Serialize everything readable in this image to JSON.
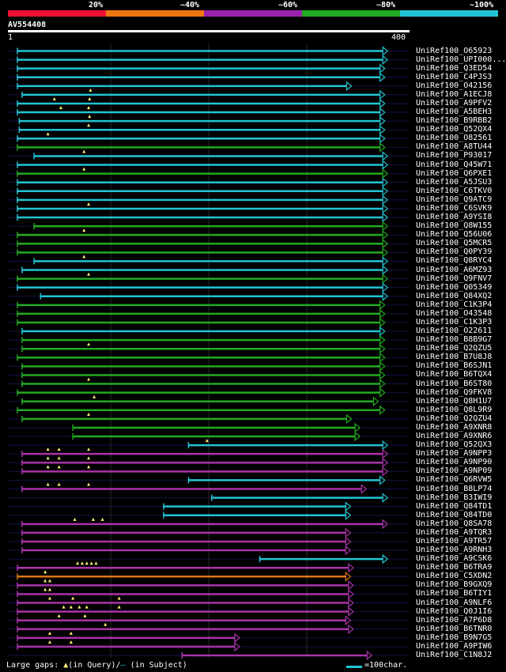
{
  "legend": {
    "colors": [
      "#ee1133",
      "#ee7711",
      "#9922aa",
      "#22aa22",
      "#22c4d4"
    ],
    "labels": [
      "20%",
      "~40%",
      "~60%",
      "~80%",
      "~100%"
    ]
  },
  "query": {
    "accession": "AV554408",
    "start": "1",
    "end": "400"
  },
  "footer": {
    "gaps_prefix": "Large gaps:",
    "gaps_query": "(in Query)/",
    "gaps_subject": " (in Subject)",
    "scale": "=100char."
  },
  "hits": [
    {
      "id": "UniRef100_O65923",
      "color": "cyan",
      "s": 0,
      "e": 395,
      "ins": []
    },
    {
      "id": "UniRef100_UPI000...",
      "color": "cyan",
      "s": 0,
      "e": 395,
      "ins": []
    },
    {
      "id": "UniRef100_Q3ED54",
      "color": "cyan",
      "s": 0,
      "e": 392,
      "ins": []
    },
    {
      "id": "UniRef100_C4PJS3",
      "color": "cyan",
      "s": 0,
      "e": 392,
      "ins": []
    },
    {
      "id": "UniRef100_O42156",
      "color": "cyan",
      "s": 0,
      "e": 356,
      "ins": []
    },
    {
      "id": "UniRef100_A1ECJ8",
      "color": "cyan",
      "s": 5,
      "e": 392,
      "ins": [
        79
      ]
    },
    {
      "id": "UniRef100_A9PFV2",
      "color": "cyan",
      "s": 0,
      "e": 392,
      "ins": [
        40,
        78
      ]
    },
    {
      "id": "UniRef100_A5BEH3",
      "color": "cyan",
      "s": 0,
      "e": 392,
      "ins": [
        47,
        77
      ]
    },
    {
      "id": "UniRef100_B9RBB2",
      "color": "cyan",
      "s": 2,
      "e": 392,
      "ins": [
        78
      ]
    },
    {
      "id": "UniRef100_Q52QX4",
      "color": "cyan",
      "s": 2,
      "e": 392,
      "ins": [
        77
      ]
    },
    {
      "id": "UniRef100_O82561",
      "color": "cyan",
      "s": 0,
      "e": 392,
      "ins": [
        33
      ]
    },
    {
      "id": "UniRef100_A8TU44",
      "color": "green",
      "s": 0,
      "e": 392,
      "ins": []
    },
    {
      "id": "UniRef100_P93017",
      "color": "cyan",
      "s": 18,
      "e": 395,
      "ins": [
        72
      ]
    },
    {
      "id": "UniRef100_Q45W71",
      "color": "cyan",
      "s": 0,
      "e": 395,
      "ins": []
    },
    {
      "id": "UniRef100_Q6PXE1",
      "color": "green",
      "s": 0,
      "e": 395,
      "ins": [
        72
      ]
    },
    {
      "id": "UniRef100_A5JSU3",
      "color": "cyan",
      "s": 0,
      "e": 395,
      "ins": []
    },
    {
      "id": "UniRef100_C6TKV0",
      "color": "cyan",
      "s": 0,
      "e": 395,
      "ins": []
    },
    {
      "id": "UniRef100_Q9ATC9",
      "color": "cyan",
      "s": 0,
      "e": 395,
      "ins": []
    },
    {
      "id": "UniRef100_C6SVK9",
      "color": "cyan",
      "s": 0,
      "e": 395,
      "ins": [
        77
      ]
    },
    {
      "id": "UniRef100_A9YSI8",
      "color": "cyan",
      "s": 0,
      "e": 395,
      "ins": []
    },
    {
      "id": "UniRef100_Q8W155",
      "color": "green",
      "s": 18,
      "e": 395,
      "ins": []
    },
    {
      "id": "UniRef100_Q56U06",
      "color": "green",
      "s": 0,
      "e": 395,
      "ins": [
        72
      ]
    },
    {
      "id": "UniRef100_Q5MCR5",
      "color": "green",
      "s": 0,
      "e": 395,
      "ins": []
    },
    {
      "id": "UniRef100_Q0PY39",
      "color": "green",
      "s": 0,
      "e": 395,
      "ins": []
    },
    {
      "id": "UniRef100_Q8RYC4",
      "color": "cyan",
      "s": 18,
      "e": 395,
      "ins": [
        72
      ]
    },
    {
      "id": "UniRef100_A6MZ93",
      "color": "cyan",
      "s": 5,
      "e": 395,
      "ins": []
    },
    {
      "id": "UniRef100_Q9FNV7",
      "color": "green",
      "s": 0,
      "e": 395,
      "ins": [
        77
      ]
    },
    {
      "id": "UniRef100_Q05349",
      "color": "cyan",
      "s": 0,
      "e": 395,
      "ins": []
    },
    {
      "id": "UniRef100_Q84XQ2",
      "color": "cyan",
      "s": 25,
      "e": 395,
      "ins": []
    },
    {
      "id": "UniRef100_C1K3P4",
      "color": "green",
      "s": 0,
      "e": 392,
      "ins": []
    },
    {
      "id": "UniRef100_O43548",
      "color": "green",
      "s": 0,
      "e": 392,
      "ins": []
    },
    {
      "id": "UniRef100_C1K3P3",
      "color": "green",
      "s": 0,
      "e": 392,
      "ins": []
    },
    {
      "id": "UniRef100_O22611",
      "color": "cyan",
      "s": 5,
      "e": 392,
      "ins": []
    },
    {
      "id": "UniRef100_B8B9G7",
      "color": "green",
      "s": 5,
      "e": 392,
      "ins": []
    },
    {
      "id": "UniRef100_Q2QZU5",
      "color": "green",
      "s": 5,
      "e": 392,
      "ins": [
        77
      ]
    },
    {
      "id": "UniRef100_B7U8J8",
      "color": "green",
      "s": 0,
      "e": 392,
      "ins": []
    },
    {
      "id": "UniRef100_B6SJN1",
      "color": "green",
      "s": 5,
      "e": 392,
      "ins": []
    },
    {
      "id": "UniRef100_B6TQX4",
      "color": "green",
      "s": 5,
      "e": 392,
      "ins": []
    },
    {
      "id": "UniRef100_B6ST80",
      "color": "green",
      "s": 5,
      "e": 392,
      "ins": [
        77
      ]
    },
    {
      "id": "UniRef100_Q9FKV8",
      "color": "green",
      "s": 0,
      "e": 392,
      "ins": []
    },
    {
      "id": "UniRef100_Q8H1U7",
      "color": "green",
      "s": 5,
      "e": 385,
      "ins": [
        83
      ]
    },
    {
      "id": "UniRef100_Q8L9R9",
      "color": "green",
      "s": 0,
      "e": 392,
      "ins": []
    },
    {
      "id": "UniRef100_Q2QZU4",
      "color": "green",
      "s": 5,
      "e": 356,
      "ins": [
        77
      ]
    },
    {
      "id": "UniRef100_A9XNR8",
      "color": "green",
      "s": 60,
      "e": 365,
      "ins": []
    },
    {
      "id": "UniRef100_A9XNR6",
      "color": "green",
      "s": 60,
      "e": 365,
      "ins": []
    },
    {
      "id": "UniRef100_Q52QX3",
      "color": "cyan",
      "s": 185,
      "e": 395,
      "ins": [
        205
      ]
    },
    {
      "id": "UniRef100_A9NPP3",
      "color": "purple",
      "s": 5,
      "e": 395,
      "ins": [
        33,
        45,
        77
      ]
    },
    {
      "id": "UniRef100_A9NP90",
      "color": "purple",
      "s": 5,
      "e": 395,
      "ins": [
        33,
        45,
        77
      ]
    },
    {
      "id": "UniRef100_A9NP09",
      "color": "purple",
      "s": 5,
      "e": 395,
      "ins": [
        33,
        45,
        77
      ]
    },
    {
      "id": "UniRef100_Q6RVW5",
      "color": "cyan",
      "s": 185,
      "e": 392,
      "ins": []
    },
    {
      "id": "UniRef100_B8LP74",
      "color": "purple",
      "s": 5,
      "e": 372,
      "ins": [
        33,
        45,
        77
      ]
    },
    {
      "id": "UniRef100_B3IWI9",
      "color": "cyan",
      "s": 210,
      "e": 395,
      "ins": []
    },
    {
      "id": "UniRef100_Q84TD1",
      "color": "cyan",
      "s": 158,
      "e": 355,
      "ins": []
    },
    {
      "id": "UniRef100_Q84TD0",
      "color": "cyan",
      "s": 158,
      "e": 355,
      "ins": []
    },
    {
      "id": "UniRef100_Q8SA78",
      "color": "purple",
      "s": 5,
      "e": 395,
      "ins": [
        62,
        82,
        92
      ]
    },
    {
      "id": "UniRef100_A9TQR3",
      "color": "purple",
      "s": 5,
      "e": 355,
      "ins": []
    },
    {
      "id": "UniRef100_A9TR57",
      "color": "purple",
      "s": 5,
      "e": 355,
      "ins": []
    },
    {
      "id": "UniRef100_A9RNH3",
      "color": "purple",
      "s": 5,
      "e": 355,
      "ins": []
    },
    {
      "id": "UniRef100_A9CSK6",
      "color": "cyan",
      "s": 262,
      "e": 395,
      "ins": []
    },
    {
      "id": "UniRef100_B6TRA9",
      "color": "purple",
      "s": 0,
      "e": 358,
      "ins": [
        65,
        70,
        75,
        80,
        85
      ]
    },
    {
      "id": "UniRef100_C5XDN2",
      "color": "orange",
      "s": 0,
      "e": 355,
      "ins": [
        30
      ]
    },
    {
      "id": "UniRef100_B9GXQ9",
      "color": "purple",
      "s": 0,
      "e": 358,
      "ins": [
        30,
        35
      ]
    },
    {
      "id": "UniRef100_B6TIY1",
      "color": "purple",
      "s": 0,
      "e": 358,
      "ins": [
        30,
        35
      ]
    },
    {
      "id": "UniRef100_A9NLF6",
      "color": "purple",
      "s": 0,
      "e": 358,
      "ins": [
        35,
        60,
        110
      ]
    },
    {
      "id": "UniRef100_Q0J1I6",
      "color": "purple",
      "s": 0,
      "e": 358,
      "ins": [
        50,
        58,
        67,
        75,
        110
      ]
    },
    {
      "id": "UniRef100_A7P6D8",
      "color": "purple",
      "s": 0,
      "e": 355,
      "ins": [
        45,
        73
      ]
    },
    {
      "id": "UniRef100_B6TNR0",
      "color": "purple",
      "s": 0,
      "e": 358,
      "ins": [
        95
      ]
    },
    {
      "id": "UniRef100_B9N7G5",
      "color": "purple",
      "s": 0,
      "e": 235,
      "ins": [
        35,
        58
      ]
    },
    {
      "id": "UniRef100_A9PIW6",
      "color": "purple",
      "s": 0,
      "e": 235,
      "ins": [
        35,
        58
      ]
    },
    {
      "id": "UniRef100_C1N8J2",
      "color": "purple",
      "s": 178,
      "e": 378,
      "ins": []
    }
  ]
}
